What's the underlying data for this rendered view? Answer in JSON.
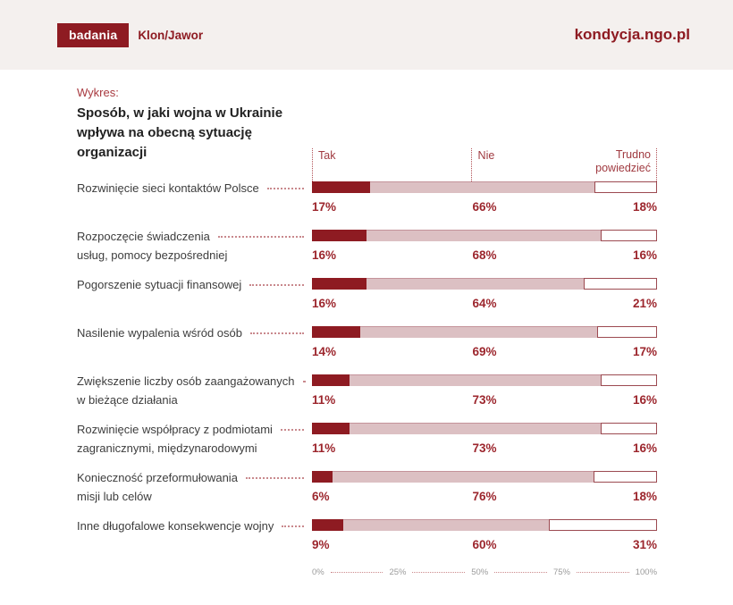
{
  "header": {
    "badge": "badania",
    "brand": "Klon/Jawor",
    "site": "kondycja.ngo.pl"
  },
  "chart": {
    "kicker": "Wykres:",
    "title_lines": [
      "Sposób, w jaki wojna w Ukrainie",
      "wpływa na obecną sytuację",
      "organizacji"
    ]
  },
  "chart_data": {
    "type": "bar",
    "stacked": true,
    "orientation": "horizontal",
    "title": "Sposób, w jaki wojna w Ukrainie wpływa na obecną sytuację organizacji",
    "legend": [
      "Tak",
      "Nie",
      "Trudno powiedzieć"
    ],
    "legend_position": "top",
    "categories": [
      "Rozwinięcie sieci kontaktów Polsce",
      "Rozpoczęcie świadczenia usług, pomocy bezpośredniej",
      "Pogorszenie sytuacji finansowej",
      "Nasilenie wypalenia wśród osób",
      "Zwiększenie liczby osób zaangażowanych w bieżące działania",
      "Rozwinięcie współpracy z podmiotami zagranicznymi, międzynarodowymi",
      "Konieczność przeformułowania misji lub celów",
      "Inne długofalowe konsekwencje wojny"
    ],
    "category_label_lines": [
      [
        "Rozwinięcie sieci kontaktów Polsce"
      ],
      [
        "Rozpoczęcie świadczenia",
        "usług, pomocy bezpośredniej"
      ],
      [
        "Pogorszenie sytuacji finansowej"
      ],
      [
        "Nasilenie wypalenia wśród osób"
      ],
      [
        "Zwiększenie liczby osób zaangażowanych",
        "w bieżące działania"
      ],
      [
        "Rozwinięcie współpracy z podmiotami",
        "zagranicznymi, międzynarodowymi"
      ],
      [
        "Konieczność przeformułowania",
        "misji lub celów"
      ],
      [
        "Inne długofalowe konsekwencje wojny"
      ]
    ],
    "series": [
      {
        "name": "Tak",
        "color": "#8e1b22",
        "values": [
          17,
          16,
          16,
          14,
          11,
          11,
          6,
          9
        ]
      },
      {
        "name": "Nie",
        "color": "#dcc0c3",
        "values": [
          66,
          68,
          64,
          69,
          73,
          73,
          76,
          60
        ]
      },
      {
        "name": "Trudno powiedzieć",
        "color": "#ffffff",
        "values": [
          18,
          16,
          21,
          17,
          16,
          16,
          18,
          31
        ]
      }
    ],
    "value_suffix": "%",
    "x_axis_ticks": [
      "0%",
      "25%",
      "50%",
      "75%",
      "100%"
    ],
    "xlim": [
      0,
      100
    ],
    "grid": false
  },
  "colors": {
    "brand_red": "#8e1b22",
    "bar_pink": "#dcc0c3",
    "header_bg": "#f4f0ee",
    "percent_text": "#9c262d",
    "legend_text": "#a03a40",
    "axis_text": "#9b9b9b"
  }
}
